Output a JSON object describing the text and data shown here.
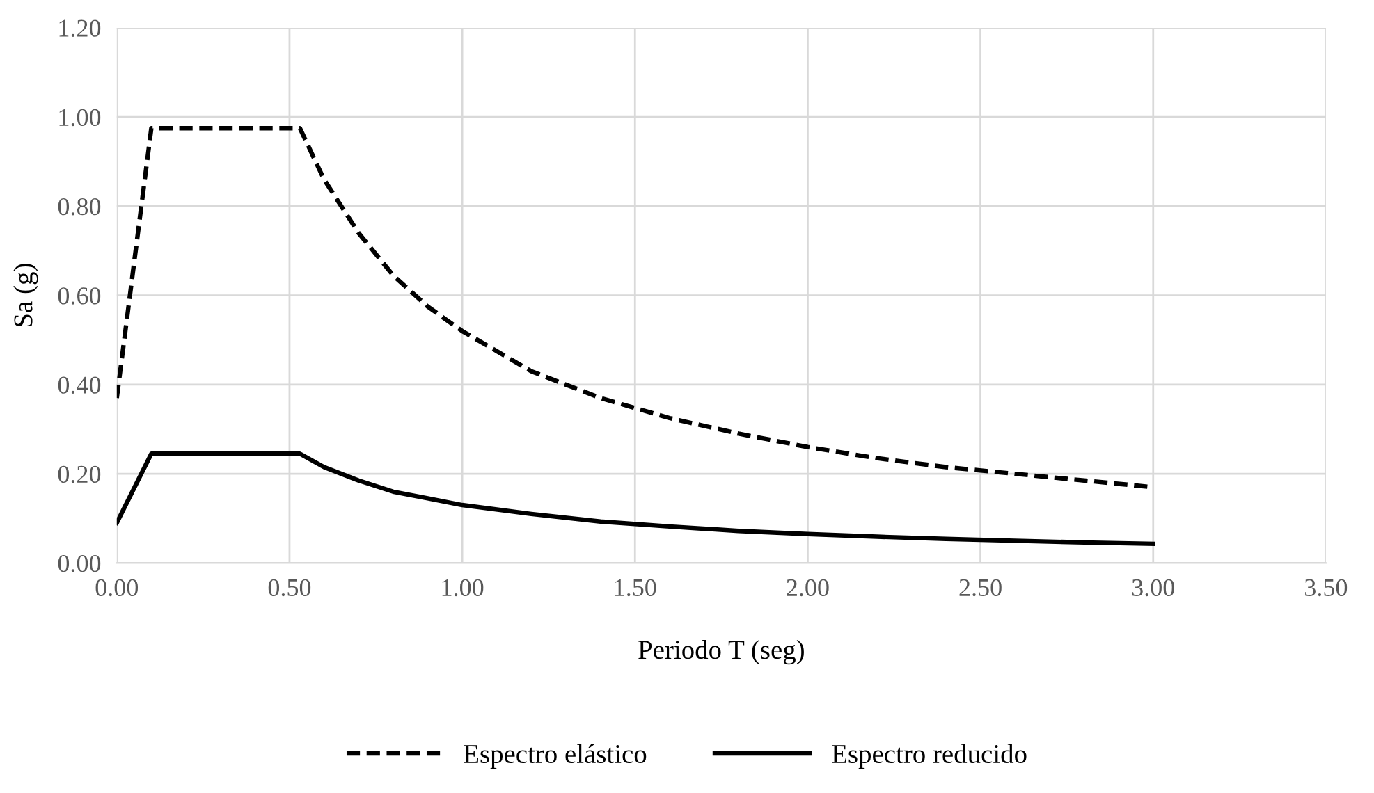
{
  "chart_data": {
    "type": "line",
    "xlabel": "Periodo T (seg)",
    "ylabel": "Sa (g)",
    "xlim": [
      0,
      3.5
    ],
    "ylim": [
      0,
      1.2
    ],
    "xticks": [
      {
        "value": 0,
        "label": "0.00"
      },
      {
        "value": 0.5,
        "label": "0.50"
      },
      {
        "value": 1,
        "label": "1.00"
      },
      {
        "value": 1.5,
        "label": "1.50"
      },
      {
        "value": 2,
        "label": "2.00"
      },
      {
        "value": 2.5,
        "label": "2.50"
      },
      {
        "value": 3,
        "label": "3.00"
      },
      {
        "value": 3.5,
        "label": "3.50"
      }
    ],
    "yticks": [
      {
        "value": 0,
        "label": "0.00"
      },
      {
        "value": 0.2,
        "label": "0.20"
      },
      {
        "value": 0.4,
        "label": "0.40"
      },
      {
        "value": 0.6,
        "label": "0.60"
      },
      {
        "value": 0.8,
        "label": "0.80"
      },
      {
        "value": 1.0,
        "label": "1.00"
      },
      {
        "value": 1.2,
        "label": "1.20"
      }
    ],
    "grid": true,
    "legend": "bottom",
    "marker": "none",
    "x": [
      0,
      0.1,
      0.53,
      0.6,
      0.7,
      0.8,
      0.9,
      1.0,
      1.2,
      1.4,
      1.6,
      1.8,
      2.0,
      2.2,
      2.4,
      2.6,
      2.8,
      3.0
    ],
    "series": [
      {
        "name": "Espectro elástico",
        "color": "#000000",
        "line_style": "dashed",
        "values": [
          0.37,
          0.975,
          0.975,
          0.86,
          0.74,
          0.645,
          0.575,
          0.52,
          0.43,
          0.37,
          0.325,
          0.29,
          0.26,
          0.235,
          0.215,
          0.2,
          0.185,
          0.17
        ]
      },
      {
        "name": "Espectro reducido",
        "color": "#000000",
        "line_style": "solid",
        "values": [
          0.09,
          0.245,
          0.245,
          0.215,
          0.185,
          0.16,
          0.145,
          0.13,
          0.11,
          0.093,
          0.082,
          0.072,
          0.065,
          0.059,
          0.054,
          0.05,
          0.046,
          0.043
        ]
      }
    ]
  }
}
